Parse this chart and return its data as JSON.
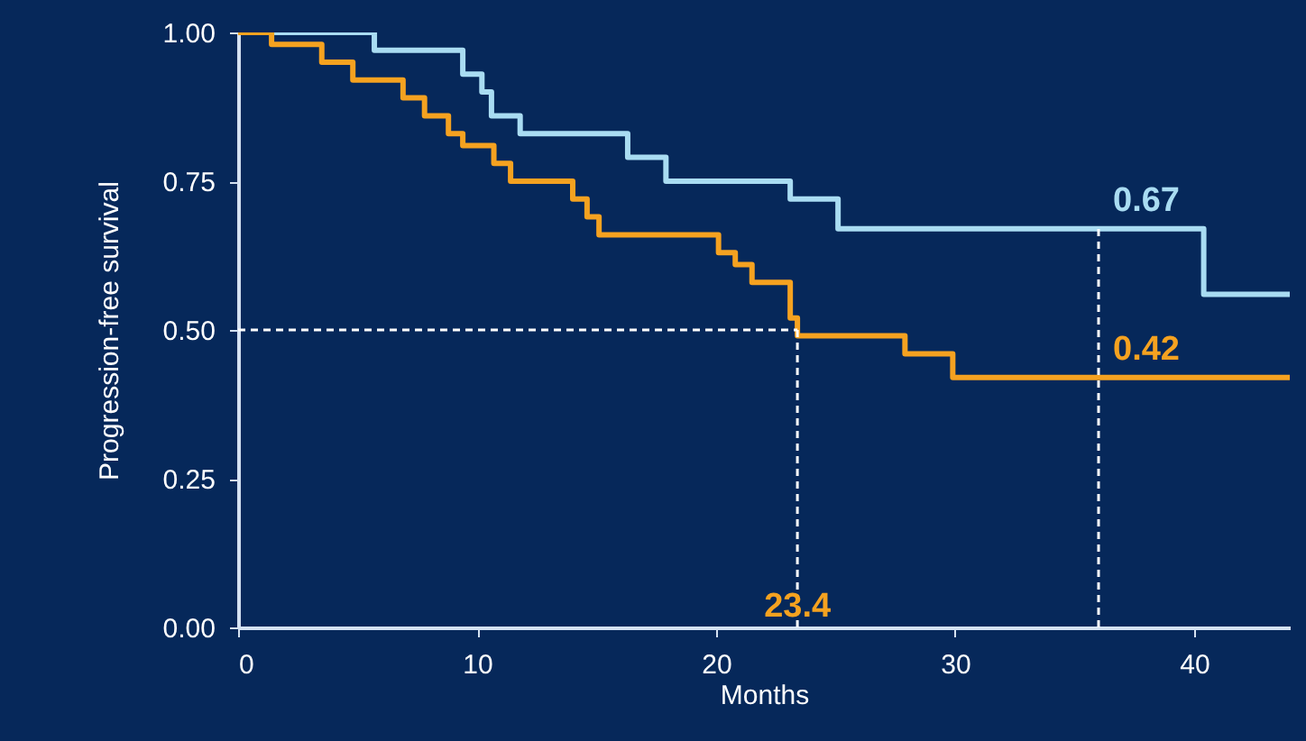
{
  "chart_data": {
    "type": "step",
    "xlabel": "Months",
    "ylabel": "Progression-free survival",
    "xlim": [
      0,
      44
    ],
    "ylim": [
      0,
      1
    ],
    "xticks": [
      0,
      10,
      20,
      30,
      40
    ],
    "yticks": [
      {
        "value": 0,
        "label": "0.00"
      },
      {
        "value": 0.25,
        "label": "0.25"
      },
      {
        "value": 0.5,
        "label": "0.50"
      },
      {
        "value": 0.75,
        "label": "0.75"
      },
      {
        "value": 1,
        "label": "1.00"
      }
    ],
    "series": [
      {
        "color": "#a9dcf2",
        "x": [
          0,
          5.7,
          9.4,
          10.2,
          10.6,
          11.8,
          16.3,
          17.9,
          23.1,
          25.1,
          40.4,
          44
        ],
        "values": [
          1,
          0.97,
          0.93,
          0.9,
          0.86,
          0.83,
          0.79,
          0.75,
          0.72,
          0.67,
          0.56,
          0.56
        ]
      },
      {
        "color": "#f5a220",
        "x": [
          0,
          1.4,
          3.5,
          4.8,
          6.9,
          7.8,
          8.8,
          9.4,
          10.7,
          11.4,
          14.0,
          14.6,
          15.1,
          20.1,
          20.8,
          21.5,
          23.1,
          23.4,
          27.9,
          29.9,
          44
        ],
        "values": [
          1,
          0.98,
          0.95,
          0.92,
          0.89,
          0.86,
          0.83,
          0.81,
          0.78,
          0.75,
          0.72,
          0.69,
          0.66,
          0.63,
          0.61,
          0.58,
          0.52,
          0.49,
          0.46,
          0.42,
          0.42
        ]
      }
    ],
    "ref_lines": [
      {
        "axis": "y",
        "value": 0.5,
        "color": "#ffffff",
        "line_style": "dashed"
      },
      {
        "axis": "x",
        "value": 23.4,
        "label": "23.4",
        "color": "#ffffff",
        "line_style": "dashed"
      },
      {
        "axis": "x",
        "value": 36,
        "color": "#ffffff",
        "line_style": "dashed"
      }
    ],
    "annotations": [
      {
        "text": "0.67",
        "x": 36,
        "y": 0.67
      },
      {
        "text": "0.42",
        "x": 36,
        "y": 0.42
      }
    ]
  }
}
